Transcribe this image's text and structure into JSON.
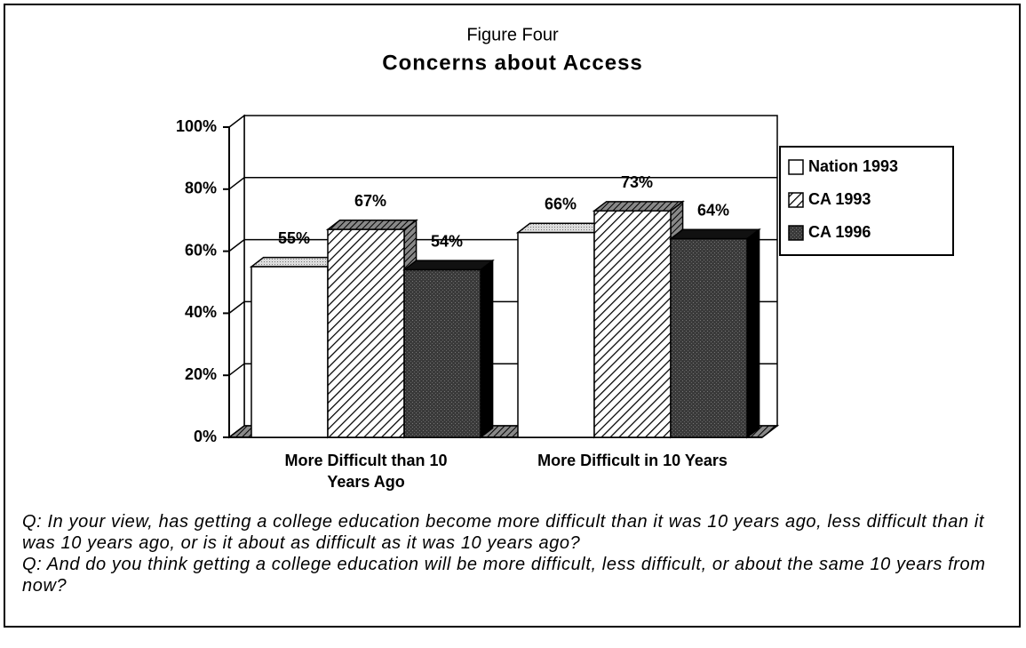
{
  "chart_data": {
    "type": "bar3d",
    "title": "Figure Four",
    "subtitle": "Concerns about Access",
    "categories": [
      "More Difficult than 10 Years Ago",
      "More Difficult in 10 Years"
    ],
    "series": [
      {
        "name": "Nation 1993",
        "color": "#ffffff",
        "values": [
          55,
          66
        ],
        "value_labels": [
          "55%",
          "66%"
        ]
      },
      {
        "name": "CA 1993",
        "color": "#ffffff",
        "values": [
          67,
          73
        ],
        "value_labels": [
          "67%",
          "73%"
        ]
      },
      {
        "name": "CA 1996",
        "color": "#3a3a3a",
        "values": [
          54,
          64
        ],
        "value_labels": [
          "54%",
          "64%"
        ]
      }
    ],
    "ylim": [
      0,
      100
    ],
    "yticks": [
      {
        "value": 0,
        "label": "0%"
      },
      {
        "value": 20,
        "label": "20%"
      },
      {
        "value": 40,
        "label": "40%"
      },
      {
        "value": 60,
        "label": "60%"
      },
      {
        "value": 80,
        "label": "80%"
      },
      {
        "value": 100,
        "label": "100%"
      }
    ],
    "grid": true,
    "legend": "right",
    "notes": [
      "Q: In your view, has getting a college education become more difficult than it was 10 years ago, less difficult than it was 10 years ago, or is it about as difficult as it was 10 years ago?",
      "Q: And do you think getting a college education will be more difficult, less difficult, or about the same 10 years from now?"
    ]
  }
}
